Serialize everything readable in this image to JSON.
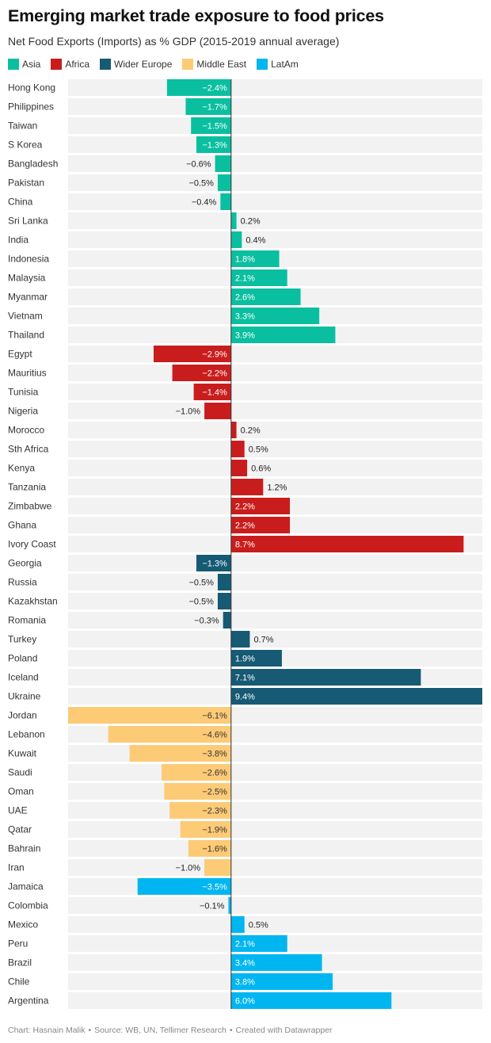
{
  "title": "Emerging market trade exposure to food prices",
  "subtitle": "Net Food Exports (Imports) as % GDP (2015-2019 annual average)",
  "footer": {
    "chart_credit": "Chart: Hasnain Malik",
    "source": "Source: WB, UN, Tellimer Research",
    "created": "Created with Datawrapper",
    "separator": "•"
  },
  "colors": {
    "Asia": "#0abf9f",
    "Africa": "#c91d1d",
    "Wider Europe": "#165a74",
    "Middle East": "#fdca76",
    "LatAm": "#00b6f1",
    "row_background": "#f2f2f2",
    "zero_line": "#333333"
  },
  "chart_data": {
    "type": "bar",
    "orientation": "horizontal",
    "title": "Emerging market trade exposure to food prices",
    "subtitle": "Net Food Exports (Imports) as % GDP (2015-2019 annual average)",
    "xlim": [
      -6.1,
      9.4
    ],
    "value_suffix": "%",
    "legend": [
      "Asia",
      "Africa",
      "Wider Europe",
      "Middle East",
      "LatAm"
    ],
    "legend_position": "top-left",
    "bars": [
      {
        "label": "Hong Kong",
        "value": -2.4,
        "group": "Asia"
      },
      {
        "label": "Philippines",
        "value": -1.7,
        "group": "Asia"
      },
      {
        "label": "Taiwan",
        "value": -1.5,
        "group": "Asia"
      },
      {
        "label": "S Korea",
        "value": -1.3,
        "group": "Asia"
      },
      {
        "label": "Bangladesh",
        "value": -0.6,
        "group": "Asia"
      },
      {
        "label": "Pakistan",
        "value": -0.5,
        "group": "Asia"
      },
      {
        "label": "China",
        "value": -0.4,
        "group": "Asia"
      },
      {
        "label": "Sri Lanka",
        "value": 0.2,
        "group": "Asia"
      },
      {
        "label": "India",
        "value": 0.4,
        "group": "Asia"
      },
      {
        "label": "Indonesia",
        "value": 1.8,
        "group": "Asia"
      },
      {
        "label": "Malaysia",
        "value": 2.1,
        "group": "Asia"
      },
      {
        "label": "Myanmar",
        "value": 2.6,
        "group": "Asia"
      },
      {
        "label": "Vietnam",
        "value": 3.3,
        "group": "Asia"
      },
      {
        "label": "Thailand",
        "value": 3.9,
        "group": "Asia"
      },
      {
        "label": "Egypt",
        "value": -2.9,
        "group": "Africa"
      },
      {
        "label": "Mauritius",
        "value": -2.2,
        "group": "Africa"
      },
      {
        "label": "Tunisia",
        "value": -1.4,
        "group": "Africa"
      },
      {
        "label": "Nigeria",
        "value": -1.0,
        "group": "Africa"
      },
      {
        "label": "Morocco",
        "value": 0.2,
        "group": "Africa"
      },
      {
        "label": "Sth Africa",
        "value": 0.5,
        "group": "Africa"
      },
      {
        "label": "Kenya",
        "value": 0.6,
        "group": "Africa"
      },
      {
        "label": "Tanzania",
        "value": 1.2,
        "group": "Africa"
      },
      {
        "label": "Zimbabwe",
        "value": 2.2,
        "group": "Africa"
      },
      {
        "label": "Ghana",
        "value": 2.2,
        "group": "Africa"
      },
      {
        "label": "Ivory Coast",
        "value": 8.7,
        "group": "Africa"
      },
      {
        "label": "Georgia",
        "value": -1.3,
        "group": "Wider Europe"
      },
      {
        "label": "Russia",
        "value": -0.5,
        "group": "Wider Europe"
      },
      {
        "label": "Kazakhstan",
        "value": -0.5,
        "group": "Wider Europe"
      },
      {
        "label": "Romania",
        "value": -0.3,
        "group": "Wider Europe"
      },
      {
        "label": "Turkey",
        "value": 0.7,
        "group": "Wider Europe"
      },
      {
        "label": "Poland",
        "value": 1.9,
        "group": "Wider Europe"
      },
      {
        "label": "Iceland",
        "value": 7.1,
        "group": "Wider Europe"
      },
      {
        "label": "Ukraine",
        "value": 9.4,
        "group": "Wider Europe"
      },
      {
        "label": "Jordan",
        "value": -6.1,
        "group": "Middle East"
      },
      {
        "label": "Lebanon",
        "value": -4.6,
        "group": "Middle East"
      },
      {
        "label": "Kuwait",
        "value": -3.8,
        "group": "Middle East"
      },
      {
        "label": "Saudi",
        "value": -2.6,
        "group": "Middle East"
      },
      {
        "label": "Oman",
        "value": -2.5,
        "group": "Middle East"
      },
      {
        "label": "UAE",
        "value": -2.3,
        "group": "Middle East"
      },
      {
        "label": "Qatar",
        "value": -1.9,
        "group": "Middle East"
      },
      {
        "label": "Bahrain",
        "value": -1.6,
        "group": "Middle East"
      },
      {
        "label": "Iran",
        "value": -1.0,
        "group": "Middle East"
      },
      {
        "label": "Jamaica",
        "value": -3.5,
        "group": "LatAm"
      },
      {
        "label": "Colombia",
        "value": -0.1,
        "group": "LatAm"
      },
      {
        "label": "Mexico",
        "value": 0.5,
        "group": "LatAm"
      },
      {
        "label": "Peru",
        "value": 2.1,
        "group": "LatAm"
      },
      {
        "label": "Brazil",
        "value": 3.4,
        "group": "LatAm"
      },
      {
        "label": "Chile",
        "value": 3.8,
        "group": "LatAm"
      },
      {
        "label": "Argentina",
        "value": 6.0,
        "group": "LatAm"
      }
    ]
  }
}
